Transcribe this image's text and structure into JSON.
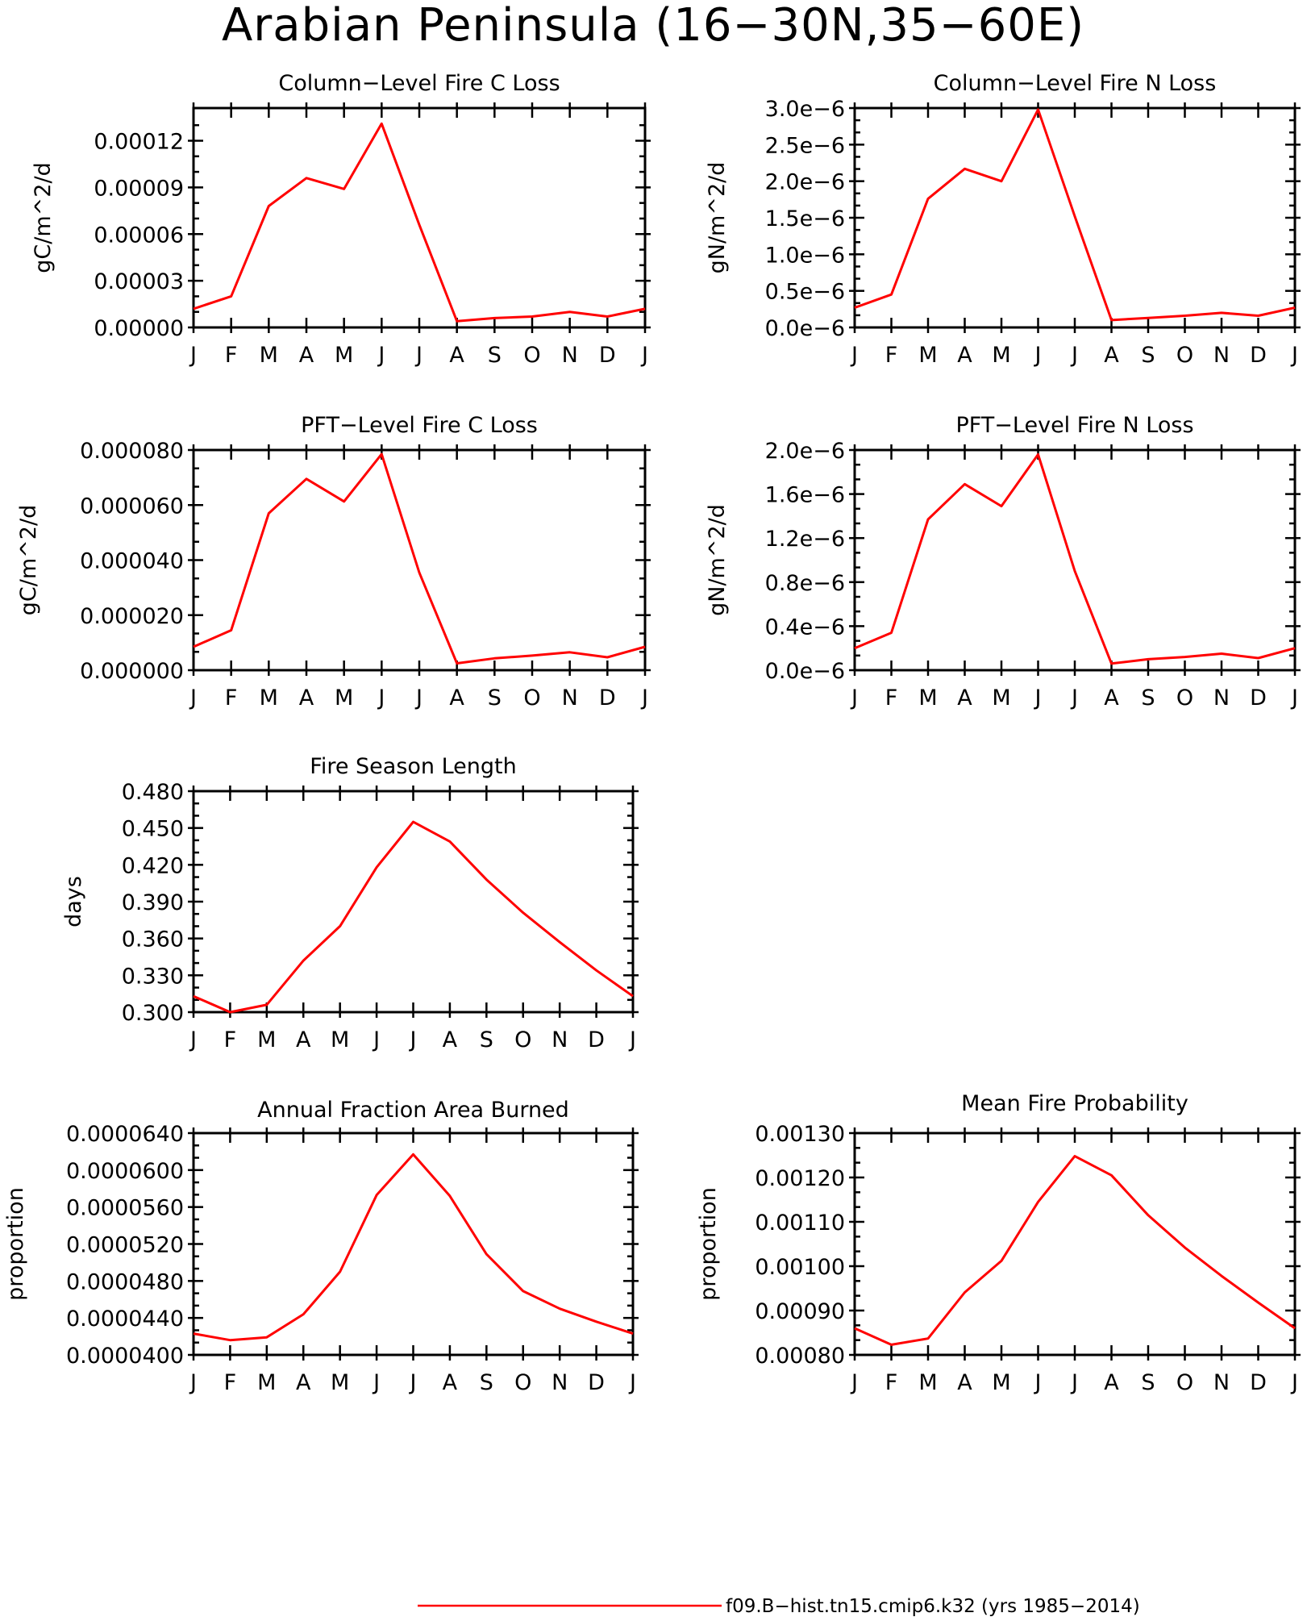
{
  "figure": {
    "title": "Arabian Peninsula (16−30N,35−60E)",
    "series_color": "#ff0000",
    "legend": {
      "label": "f09.B−hist.tn15.cmip6.k32 (yrs 1985−2014)"
    }
  },
  "chart_data": [
    {
      "type": "line",
      "title": "Column−Level Fire C Loss",
      "ylabel": "gC/m^2/d",
      "xlabel": "",
      "categories": [
        "J",
        "F",
        "M",
        "A",
        "M",
        "J",
        "J",
        "A",
        "S",
        "O",
        "N",
        "D",
        "J"
      ],
      "ylim": [
        0,
        0.000141
      ],
      "yticks": [
        0,
        3e-05,
        6e-05,
        9e-05,
        0.00012
      ],
      "ytick_labels": [
        "0.00000",
        "0.00003",
        "0.00006",
        "0.00009",
        "0.00012"
      ],
      "values": [
        1.2e-05,
        2e-05,
        7.8e-05,
        9.6e-05,
        8.9e-05,
        0.000131,
        6.6e-05,
        4e-06,
        6e-06,
        7e-06,
        1e-05,
        7e-06,
        1.2e-05
      ]
    },
    {
      "type": "line",
      "title": "Column−Level Fire N Loss",
      "ylabel": "gN/m^2/d",
      "xlabel": "",
      "categories": [
        "J",
        "F",
        "M",
        "A",
        "M",
        "J",
        "J",
        "A",
        "S",
        "O",
        "N",
        "D",
        "J"
      ],
      "ylim": [
        0,
        3e-06
      ],
      "yticks": [
        0,
        5e-07,
        1e-06,
        1.5e-06,
        2e-06,
        2.5e-06,
        3e-06
      ],
      "ytick_labels": [
        "0.0e−6",
        "0.5e−6",
        "1.0e−6",
        "1.5e−6",
        "2.0e−6",
        "2.5e−6",
        "3.0e−6"
      ],
      "values": [
        2.7e-07,
        4.5e-07,
        1.76e-06,
        2.17e-06,
        2e-06,
        2.98e-06,
        1.52e-06,
        1e-07,
        1.3e-07,
        1.6e-07,
        2e-07,
        1.6e-07,
        2.7e-07
      ]
    },
    {
      "type": "line",
      "title": "PFT−Level Fire C Loss",
      "ylabel": "gC/m^2/d",
      "xlabel": "",
      "categories": [
        "J",
        "F",
        "M",
        "A",
        "M",
        "J",
        "J",
        "A",
        "S",
        "O",
        "N",
        "D",
        "J"
      ],
      "ylim": [
        0,
        8e-05
      ],
      "yticks": [
        0,
        2e-05,
        4e-05,
        6e-05,
        8e-05
      ],
      "ytick_labels": [
        "0.000000",
        "0.000020",
        "0.000040",
        "0.000060",
        "0.000080"
      ],
      "values": [
        8.5e-06,
        1.45e-05,
        5.7e-05,
        6.95e-05,
        6.13e-05,
        7.85e-05,
        3.55e-05,
        2.5e-06,
        4.3e-06,
        5.3e-06,
        6.5e-06,
        4.7e-06,
        8.5e-06
      ]
    },
    {
      "type": "line",
      "title": "PFT−Level Fire N Loss",
      "ylabel": "gN/m^2/d",
      "xlabel": "",
      "categories": [
        "J",
        "F",
        "M",
        "A",
        "M",
        "J",
        "J",
        "A",
        "S",
        "O",
        "N",
        "D",
        "J"
      ],
      "ylim": [
        0,
        2e-06
      ],
      "yticks": [
        0,
        4e-07,
        8e-07,
        1.2e-06,
        1.6e-06,
        2e-06
      ],
      "ytick_labels": [
        "0.0e−6",
        "0.4e−6",
        "0.8e−6",
        "1.2e−6",
        "1.6e−6",
        "2.0e−6"
      ],
      "values": [
        2e-07,
        3.4e-07,
        1.37e-06,
        1.69e-06,
        1.49e-06,
        1.96e-06,
        9e-07,
        6e-08,
        1e-07,
        1.2e-07,
        1.5e-07,
        1.1e-07,
        2e-07
      ]
    },
    {
      "type": "line",
      "title": "Fire Season Length",
      "ylabel": "days",
      "xlabel": "",
      "categories": [
        "J",
        "F",
        "M",
        "A",
        "M",
        "J",
        "J",
        "A",
        "S",
        "O",
        "N",
        "D",
        "J"
      ],
      "ylim": [
        0.3,
        0.48
      ],
      "yticks": [
        0.3,
        0.33,
        0.36,
        0.39,
        0.42,
        0.45,
        0.48
      ],
      "ytick_labels": [
        "0.300",
        "0.330",
        "0.360",
        "0.390",
        "0.420",
        "0.450",
        "0.480"
      ],
      "values": [
        0.313,
        0.3,
        0.306,
        0.342,
        0.37,
        0.418,
        0.455,
        0.439,
        0.408,
        0.381,
        0.357,
        0.334,
        0.313
      ]
    },
    {
      "type": "line",
      "title": "Annual Fraction Area Burned",
      "ylabel": "proportion",
      "xlabel": "",
      "categories": [
        "J",
        "F",
        "M",
        "A",
        "M",
        "J",
        "J",
        "A",
        "S",
        "O",
        "N",
        "D",
        "J"
      ],
      "ylim": [
        4e-05,
        6.4e-05
      ],
      "yticks": [
        4e-05,
        4.4e-05,
        4.8e-05,
        5.2e-05,
        5.6e-05,
        6e-05,
        6.4e-05
      ],
      "ytick_labels": [
        "0.0000400",
        "0.0000440",
        "0.0000480",
        "0.0000520",
        "0.0000560",
        "0.0000600",
        "0.0000640"
      ],
      "values": [
        4.23e-05,
        4.16e-05,
        4.19e-05,
        4.44e-05,
        4.9e-05,
        5.73e-05,
        6.17e-05,
        5.72e-05,
        5.09e-05,
        4.69e-05,
        4.5e-05,
        4.36e-05,
        4.23e-05
      ]
    },
    {
      "type": "line",
      "title": "Mean Fire Probability",
      "ylabel": "proportion",
      "xlabel": "",
      "categories": [
        "J",
        "F",
        "M",
        "A",
        "M",
        "J",
        "J",
        "A",
        "S",
        "O",
        "N",
        "D",
        "J"
      ],
      "ylim": [
        0.0008,
        0.0013
      ],
      "yticks": [
        0.0008,
        0.0009,
        0.001,
        0.0011,
        0.0012,
        0.0013
      ],
      "ytick_labels": [
        "0.00080",
        "0.00090",
        "0.00100",
        "0.00110",
        "0.00120",
        "0.00130"
      ],
      "values": [
        0.00086,
        0.000823,
        0.000837,
        0.000941,
        0.001012,
        0.001145,
        0.001248,
        0.001205,
        0.001115,
        0.001042,
        0.000978,
        0.000918,
        0.00086
      ]
    }
  ]
}
